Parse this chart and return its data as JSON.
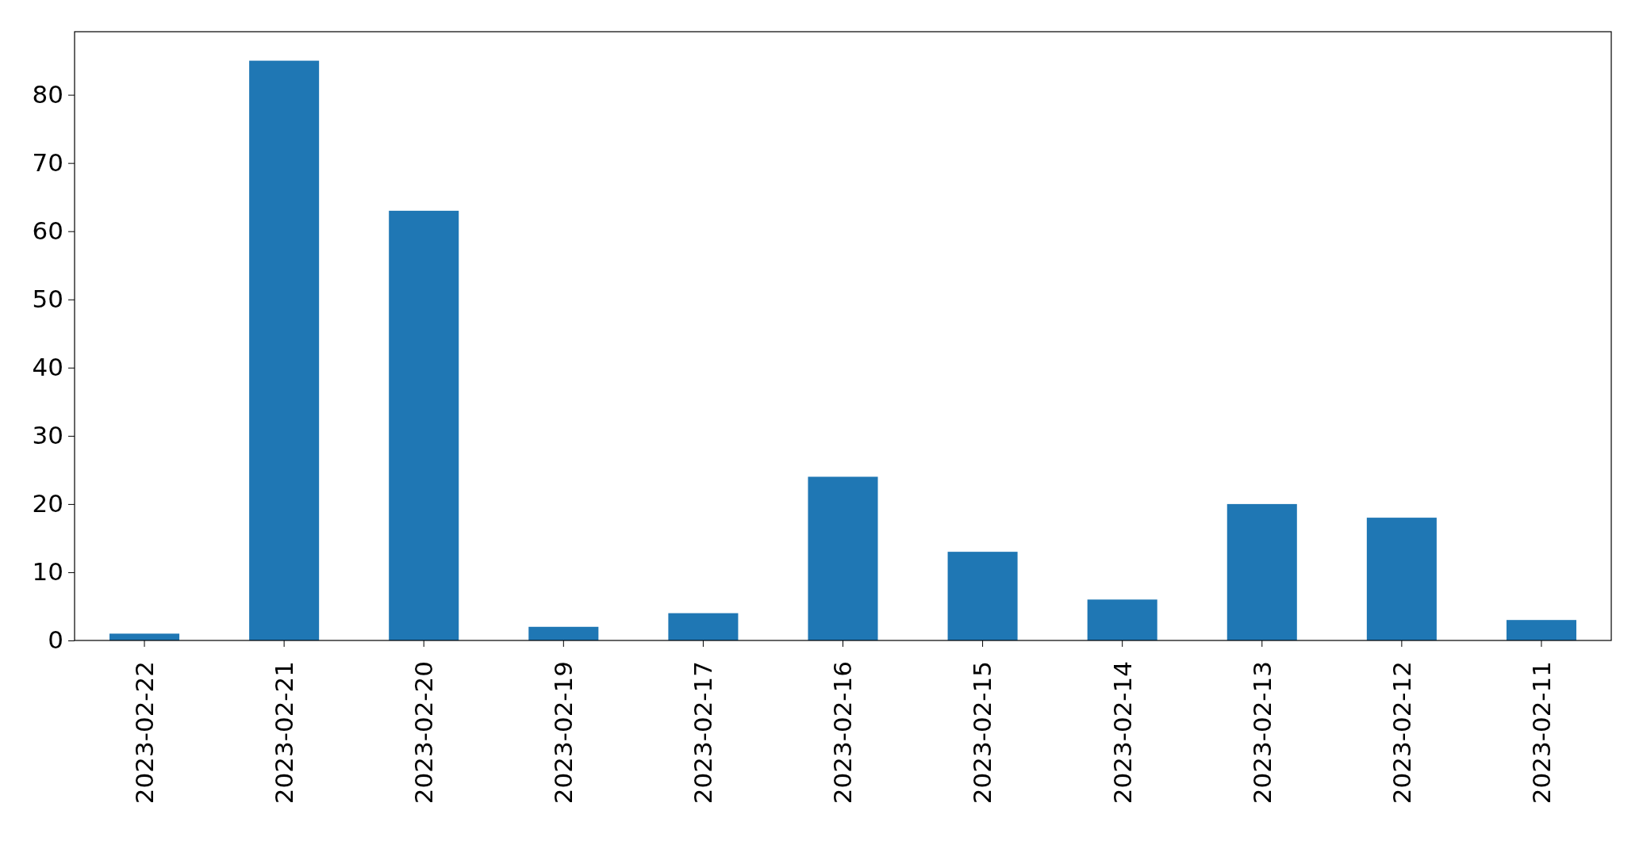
{
  "chart_data": {
    "type": "bar",
    "categories": [
      "2023-02-22",
      "2023-02-21",
      "2023-02-20",
      "2023-02-19",
      "2023-02-17",
      "2023-02-16",
      "2023-02-15",
      "2023-02-14",
      "2023-02-13",
      "2023-02-12",
      "2023-02-11"
    ],
    "values": [
      1,
      85,
      63,
      2,
      4,
      24,
      13,
      6,
      20,
      18,
      3
    ],
    "color": "#1f77b4",
    "ylim": [
      0,
      89.25
    ],
    "yticks": [
      0,
      10,
      20,
      30,
      40,
      50,
      60,
      70,
      80
    ],
    "grid": false
  }
}
